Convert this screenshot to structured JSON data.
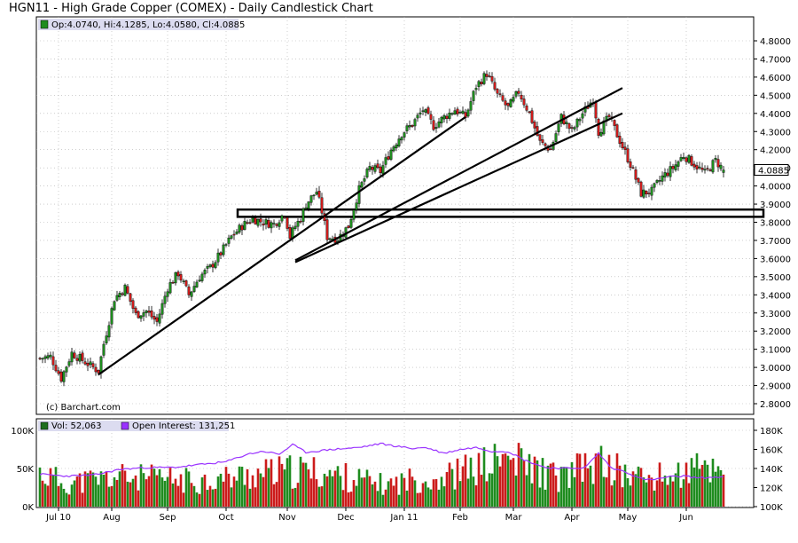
{
  "title": "HGN11 - High Grade Copper (COMEX) - Daily Candlestick Chart",
  "price_legend": "Op:4.0740, Hi:4.1285, Lo:4.0580, Cl:4.0885",
  "last_price_label": "4.0885",
  "copyright": "(c) Barchart.com",
  "volume_legend": "Vol: 52,063",
  "oi_legend": "Open Interest: 131,251",
  "colors": {
    "up": "#1e8c1e",
    "down": "#cc1b1b",
    "oi_line": "#9a33ff",
    "grid": "#b0b0b0",
    "legend_bg": "#dcdcf0"
  },
  "chart_data": [
    {
      "type": "candlestick",
      "ylim": [
        2.8,
        4.8
      ],
      "y_ticks": [
        "4.8000",
        "4.7000",
        "4.6000",
        "4.5000",
        "4.4000",
        "4.3000",
        "4.2000",
        "4.1000",
        "4.0000",
        "3.9000",
        "3.8000",
        "3.7000",
        "3.6000",
        "3.5000",
        "3.4000",
        "3.3000",
        "3.2000",
        "3.1000",
        "3.0000",
        "2.9000",
        "2.8000"
      ],
      "x_ticks": [
        "Jul 10",
        "Aug",
        "Sep",
        "Oct",
        "Nov",
        "Dec",
        "Jan 11",
        "Feb",
        "Mar",
        "Apr",
        "May",
        "Jun"
      ],
      "x_tick_days": [
        7,
        27,
        48,
        70,
        93,
        115,
        137,
        158,
        178,
        200,
        221,
        243
      ],
      "n_days": 260,
      "close_anchors": [
        [
          0,
          3.05
        ],
        [
          4,
          3.06
        ],
        [
          8,
          2.94
        ],
        [
          12,
          3.08
        ],
        [
          18,
          3.02
        ],
        [
          22,
          2.98
        ],
        [
          24,
          3.13
        ],
        [
          28,
          3.38
        ],
        [
          32,
          3.44
        ],
        [
          36,
          3.29
        ],
        [
          40,
          3.31
        ],
        [
          44,
          3.25
        ],
        [
          48,
          3.44
        ],
        [
          52,
          3.52
        ],
        [
          56,
          3.4
        ],
        [
          60,
          3.5
        ],
        [
          64,
          3.55
        ],
        [
          68,
          3.63
        ],
        [
          72,
          3.72
        ],
        [
          76,
          3.78
        ],
        [
          80,
          3.82
        ],
        [
          84,
          3.8
        ],
        [
          88,
          3.79
        ],
        [
          92,
          3.85
        ],
        [
          94,
          3.72
        ],
        [
          96,
          3.78
        ],
        [
          98,
          3.82
        ],
        [
          100,
          3.9
        ],
        [
          104,
          3.97
        ],
        [
          106,
          3.86
        ],
        [
          108,
          3.72
        ],
        [
          112,
          3.71
        ],
        [
          116,
          3.78
        ],
        [
          120,
          3.98
        ],
        [
          124,
          4.1
        ],
        [
          128,
          4.08
        ],
        [
          132,
          4.2
        ],
        [
          136,
          4.29
        ],
        [
          140,
          4.34
        ],
        [
          144,
          4.42
        ],
        [
          148,
          4.33
        ],
        [
          152,
          4.38
        ],
        [
          156,
          4.42
        ],
        [
          160,
          4.38
        ],
        [
          164,
          4.55
        ],
        [
          168,
          4.62
        ],
        [
          172,
          4.5
        ],
        [
          176,
          4.43
        ],
        [
          180,
          4.52
        ],
        [
          184,
          4.4
        ],
        [
          188,
          4.24
        ],
        [
          192,
          4.2
        ],
        [
          196,
          4.38
        ],
        [
          200,
          4.3
        ],
        [
          204,
          4.4
        ],
        [
          208,
          4.48
        ],
        [
          210,
          4.3
        ],
        [
          214,
          4.38
        ],
        [
          218,
          4.25
        ],
        [
          222,
          4.12
        ],
        [
          226,
          3.96
        ],
        [
          230,
          3.97
        ],
        [
          234,
          4.05
        ],
        [
          238,
          4.1
        ],
        [
          242,
          4.17
        ],
        [
          246,
          4.12
        ],
        [
          250,
          4.07
        ],
        [
          254,
          4.14
        ],
        [
          257,
          4.09
        ]
      ],
      "last": {
        "open": 4.074,
        "high": 4.1285,
        "low": 4.058,
        "close": 4.0885
      },
      "trendlines": [
        {
          "from": [
            22,
            2.96
          ],
          "to": [
            160,
            4.38
          ]
        },
        {
          "from": [
            96,
            3.59
          ],
          "to": [
            219,
            4.54
          ]
        },
        {
          "from": [
            96,
            3.58
          ],
          "to": [
            219,
            4.4
          ]
        }
      ],
      "support_zone": [
        3.83,
        3.87
      ]
    },
    {
      "type": "bar+line",
      "volume_ylim": [
        0,
        100000
      ],
      "volume_ticks": [
        "100K",
        "50K",
        "0K"
      ],
      "volume_tick_values": [
        100000,
        50000,
        0
      ],
      "oi_ylim": [
        100000,
        180000
      ],
      "oi_ticks": [
        "180K",
        "160K",
        "140K",
        "120K",
        "100K"
      ],
      "oi_tick_values": [
        180000,
        160000,
        140000,
        120000,
        100000
      ],
      "oi_anchors": [
        [
          0,
          134000
        ],
        [
          10,
          132000
        ],
        [
          20,
          133000
        ],
        [
          30,
          139000
        ],
        [
          40,
          141000
        ],
        [
          50,
          141000
        ],
        [
          60,
          144000
        ],
        [
          70,
          147000
        ],
        [
          78,
          155000
        ],
        [
          84,
          158000
        ],
        [
          90,
          155000
        ],
        [
          95,
          165000
        ],
        [
          100,
          157000
        ],
        [
          110,
          160000
        ],
        [
          120,
          162000
        ],
        [
          128,
          166000
        ],
        [
          135,
          163000
        ],
        [
          140,
          161000
        ],
        [
          145,
          162000
        ],
        [
          152,
          156000
        ],
        [
          158,
          160000
        ],
        [
          164,
          162000
        ],
        [
          170,
          158000
        ],
        [
          176,
          158000
        ],
        [
          182,
          149000
        ],
        [
          190,
          141000
        ],
        [
          198,
          140000
        ],
        [
          205,
          141000
        ],
        [
          210,
          156000
        ],
        [
          215,
          140000
        ],
        [
          220,
          137000
        ],
        [
          225,
          130000
        ],
        [
          230,
          128000
        ],
        [
          236,
          131000
        ],
        [
          242,
          132000
        ],
        [
          248,
          130000
        ],
        [
          254,
          131000
        ],
        [
          257,
          131251
        ]
      ],
      "volume_level_anchors": [
        [
          0,
          48000
        ],
        [
          10,
          32000
        ],
        [
          20,
          38000
        ],
        [
          30,
          42000
        ],
        [
          40,
          40000
        ],
        [
          50,
          38000
        ],
        [
          60,
          36000
        ],
        [
          70,
          40000
        ],
        [
          80,
          45000
        ],
        [
          90,
          48000
        ],
        [
          100,
          50000
        ],
        [
          110,
          45000
        ],
        [
          120,
          38000
        ],
        [
          130,
          30000
        ],
        [
          140,
          38000
        ],
        [
          150,
          40000
        ],
        [
          160,
          50000
        ],
        [
          170,
          60000
        ],
        [
          175,
          68000
        ],
        [
          185,
          55000
        ],
        [
          195,
          40000
        ],
        [
          205,
          55000
        ],
        [
          212,
          60000
        ],
        [
          220,
          45000
        ],
        [
          230,
          40000
        ],
        [
          240,
          45000
        ],
        [
          250,
          55000
        ],
        [
          257,
          52063
        ]
      ]
    }
  ]
}
